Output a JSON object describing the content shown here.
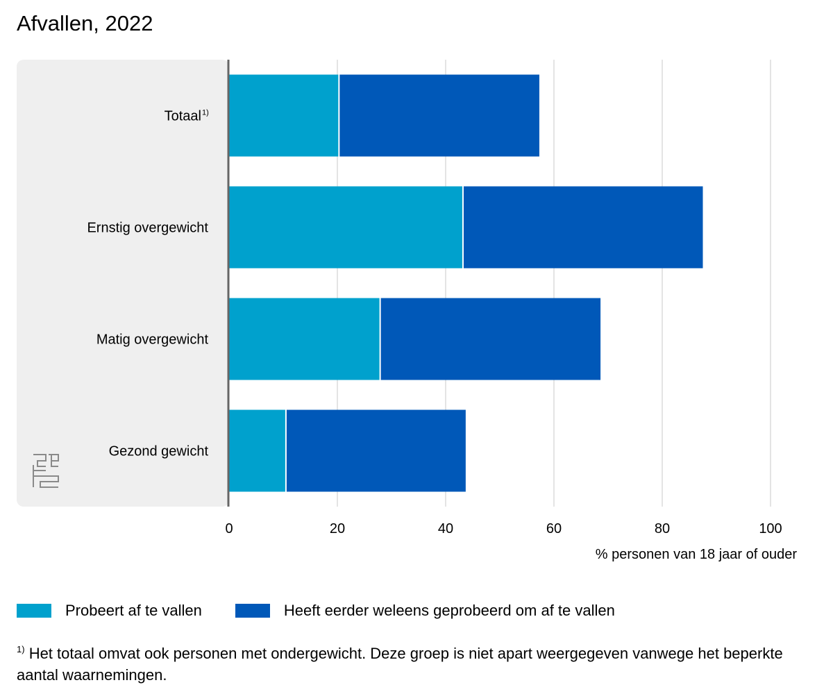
{
  "title": "Afvallen, 2022",
  "chart_data": {
    "type": "bar",
    "orientation": "horizontal",
    "stacked": true,
    "title": "Afvallen, 2022",
    "categories": [
      "Totaal",
      "Ernstig overgewicht",
      "Matig overgewicht",
      "Gezond gewicht"
    ],
    "category_notes": [
      "1)",
      "",
      "",
      ""
    ],
    "series": [
      {
        "name": "Probeert af te vallen",
        "color": "#00a1cd",
        "values": [
          20.3,
          43.2,
          27.9,
          10.5
        ]
      },
      {
        "name": "Heeft eerder weleens geprobeerd om af te vallen",
        "color": "#0058b8",
        "values": [
          37.0,
          44.3,
          40.7,
          33.2
        ]
      }
    ],
    "xlim": [
      0,
      100
    ],
    "xticks": [
      "0",
      "20",
      "40",
      "60",
      "80",
      "100"
    ],
    "xlabel": "% personen van 18 jaar of ouder",
    "grid": "vertical",
    "legend_position": "bottom",
    "label_panel_color": "#efefef",
    "gridline_color": "#c8c8c8"
  },
  "legend": {
    "items": [
      {
        "label": "Probeert af te vallen",
        "color": "#00a1cd"
      },
      {
        "label": "Heeft eerder weleens geprobeerd om af te vallen",
        "color": "#0058b8"
      }
    ]
  },
  "footnote": {
    "marker": "1)",
    "text": "Het totaal omvat ook personen met ondergewicht. Deze groep is niet apart weergegeven vanwege het beperkte aantal waarnemingen."
  },
  "logo": {
    "icon": "cbs-logo-icon"
  }
}
